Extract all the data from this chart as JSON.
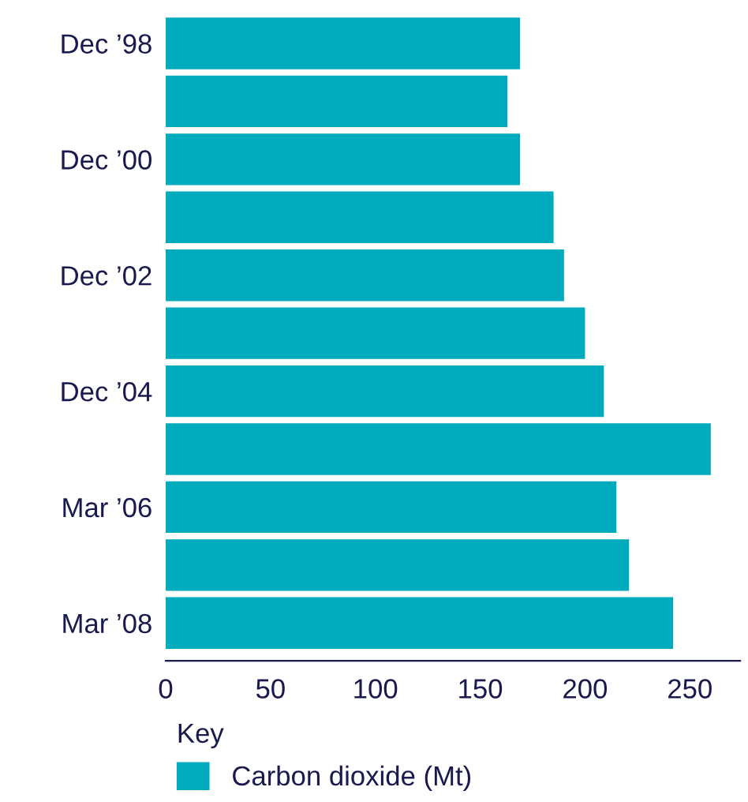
{
  "chart_data": {
    "type": "bar",
    "orientation": "horizontal",
    "categories": [
      "Dec ’98",
      null,
      "Dec ’00",
      null,
      "Dec ’02",
      null,
      "Dec ’04",
      null,
      "Mar ’06",
      null,
      "Mar ’08"
    ],
    "series": [
      {
        "name": "Carbon dioxide (Mt)",
        "color": "#00abbd",
        "values": [
          169,
          163,
          169,
          185,
          190,
          200,
          209,
          260,
          215,
          221,
          242
        ]
      }
    ],
    "xlim": [
      0,
      274
    ],
    "xticks": [
      0,
      50,
      100,
      150,
      200,
      250
    ],
    "legend": "bottom",
    "legend_title": "Key",
    "grid": false
  }
}
